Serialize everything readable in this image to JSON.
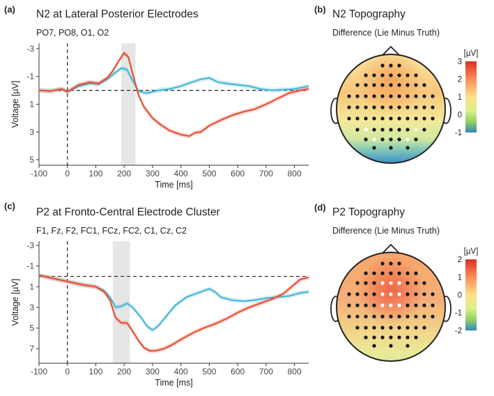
{
  "panels": {
    "a": {
      "letter": "(a)",
      "title": "N2 at Lateral Posterior Electrodes",
      "subtitle": "PO7, PO8, O1, O2"
    },
    "b": {
      "letter": "(b)",
      "title": "N2 Topography",
      "subtitle": "Difference (Lie Minus Truth)",
      "colorbar_title": "[µV]",
      "colorbar_ticks": [
        "3",
        "2",
        "1",
        "0",
        "-1"
      ],
      "colorbar_range": [
        -1,
        3
      ],
      "white_electrodes": 4
    },
    "c": {
      "letter": "(c)",
      "title": "P2 at Fronto-Central Electrode Cluster",
      "subtitle": "F1, Fz, F2, FC1, FCz, FC2, C1, Cz, C2"
    },
    "d": {
      "letter": "(d)",
      "title": "P2 Topography",
      "subtitle": "Difference (Lie Minus Truth)",
      "colorbar_title": "[µV]",
      "colorbar_ticks": [
        "2",
        "1",
        "0",
        "-1",
        "-2"
      ],
      "colorbar_range": [
        -2,
        2
      ],
      "white_electrodes": 9
    }
  },
  "colors": {
    "lie": "#e8533a",
    "truth": "#4cb8d8",
    "highlight": "#d9d9d9",
    "head_outline": "#222222"
  },
  "chart_data": [
    {
      "type": "line",
      "panel": "a",
      "xlabel": "Time [ms]",
      "ylabel": "Voltage [µV]",
      "xlim": [
        -100,
        850
      ],
      "ylim": [
        -3.4,
        5.4
      ],
      "y_inverted": true,
      "xticks": [
        -100,
        0,
        100,
        200,
        300,
        400,
        500,
        600,
        700,
        800
      ],
      "yticks": [
        -3,
        -1,
        1,
        3,
        5
      ],
      "highlight_window": [
        190,
        240
      ],
      "baseline_y": 0,
      "series": [
        {
          "color": "#4cb8d8",
          "x": [
            -100,
            -60,
            -20,
            0,
            40,
            80,
            110,
            140,
            170,
            190,
            210,
            230,
            250,
            280,
            320,
            360,
            400,
            440,
            470,
            500,
            530,
            560,
            600,
            640,
            680,
            720,
            760,
            800,
            850
          ],
          "y": [
            0,
            0.05,
            -0.1,
            0.1,
            -0.3,
            -0.5,
            -0.45,
            -0.8,
            -1.3,
            -1.6,
            -1.5,
            -0.7,
            0.05,
            0.2,
            0,
            -0.1,
            -0.3,
            -0.6,
            -0.8,
            -0.9,
            -0.6,
            -0.5,
            -0.4,
            -0.3,
            -0.1,
            0,
            -0.05,
            -0.1,
            -0.3
          ]
        },
        {
          "color": "#e8533a",
          "x": [
            -100,
            -60,
            -20,
            0,
            40,
            80,
            110,
            140,
            160,
            180,
            200,
            215,
            230,
            250,
            270,
            300,
            330,
            360,
            400,
            430,
            450,
            470,
            500,
            540,
            580,
            620,
            660,
            700,
            740,
            780,
            820,
            850
          ],
          "y": [
            0,
            0.05,
            -0.1,
            0.1,
            -0.4,
            -0.6,
            -0.5,
            -0.9,
            -1.4,
            -2.1,
            -2.7,
            -2.4,
            -1.2,
            0.3,
            1.2,
            2.0,
            2.5,
            2.9,
            3.2,
            3.3,
            3.05,
            3.0,
            2.55,
            2.15,
            1.8,
            1.55,
            1.35,
            1.0,
            0.6,
            0.2,
            0,
            -0.1
          ]
        }
      ]
    },
    {
      "type": "line",
      "panel": "c",
      "xlabel": "Time [ms]",
      "ylabel": "Voltage [µV]",
      "xlim": [
        -100,
        850
      ],
      "ylim": [
        -3.4,
        8.4
      ],
      "y_inverted": true,
      "xticks": [
        -100,
        0,
        100,
        200,
        300,
        400,
        500,
        600,
        700,
        800
      ],
      "yticks": [
        -3,
        -1,
        1,
        3,
        5,
        7
      ],
      "highlight_window": [
        160,
        220
      ],
      "baseline_y": 0,
      "series": [
        {
          "color": "#4cb8d8",
          "x": [
            -100,
            -50,
            0,
            50,
            100,
            130,
            150,
            170,
            190,
            210,
            230,
            260,
            280,
            300,
            320,
            350,
            380,
            420,
            460,
            500,
            520,
            540,
            580,
            620,
            660,
            700,
            740,
            780,
            820,
            850
          ],
          "y": [
            -0.1,
            0.2,
            0.5,
            0.8,
            1.0,
            1.4,
            2.0,
            3.0,
            2.9,
            2.6,
            3.0,
            4.0,
            4.8,
            5.2,
            4.8,
            3.8,
            2.8,
            2.0,
            1.6,
            1.2,
            1.5,
            2.0,
            2.3,
            2.4,
            2.3,
            2.1,
            2.0,
            1.9,
            1.6,
            1.5
          ]
        },
        {
          "color": "#e8533a",
          "x": [
            -100,
            -50,
            0,
            50,
            100,
            130,
            150,
            170,
            190,
            210,
            230,
            250,
            270,
            290,
            310,
            340,
            370,
            400,
            440,
            480,
            520,
            560,
            600,
            640,
            680,
            720,
            760,
            790,
            820,
            850
          ],
          "y": [
            -0.1,
            0.2,
            0.5,
            0.8,
            1.0,
            1.5,
            2.3,
            4.0,
            4.5,
            4.5,
            5.3,
            6.2,
            6.9,
            7.2,
            7.2,
            7.0,
            6.6,
            6.1,
            5.5,
            5.0,
            4.6,
            4.1,
            3.5,
            3.0,
            2.6,
            2.2,
            1.7,
            1.0,
            0.3,
            0.1
          ]
        }
      ]
    }
  ]
}
